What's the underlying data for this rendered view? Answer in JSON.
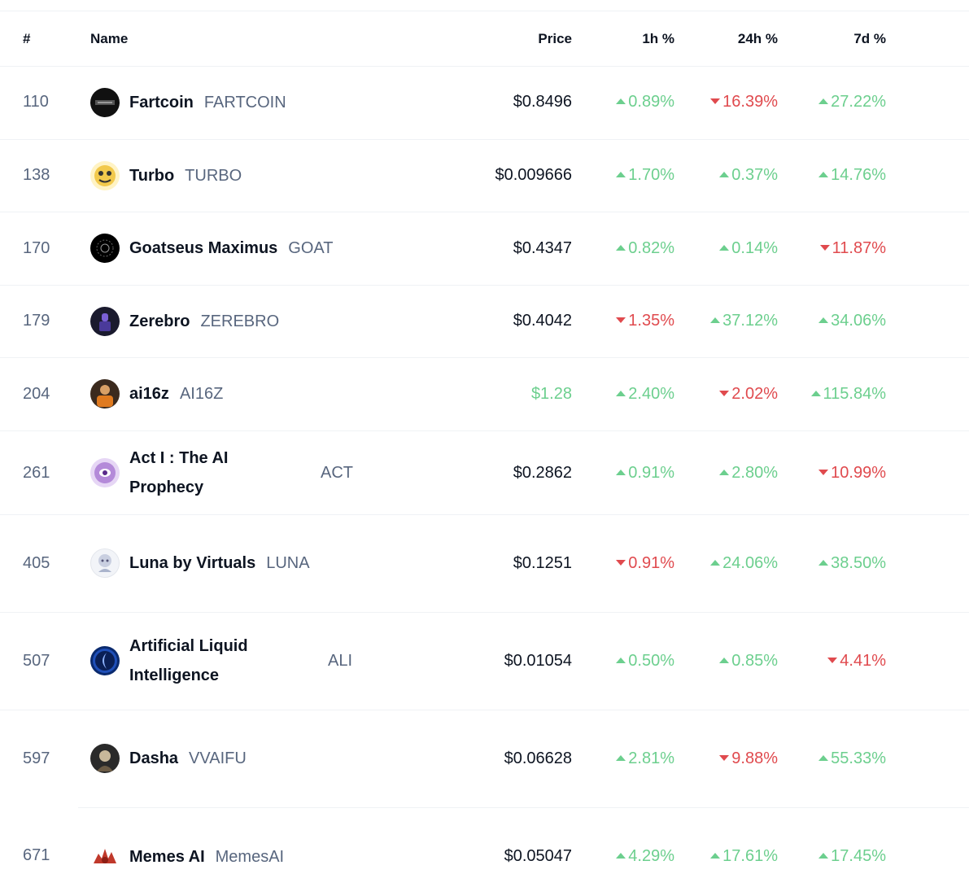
{
  "header": {
    "rank": "#",
    "name": "Name",
    "price": "Price",
    "h1": "1h %",
    "h24": "24h %",
    "d7": "7d %"
  },
  "rows": [
    {
      "rank": "110",
      "name": "Fartcoin",
      "symbol": "FARTCOIN",
      "price": "$0.8496",
      "price_color": "default",
      "h1": "0.89%",
      "h1_dir": "up",
      "h24": "16.39%",
      "h24_dir": "down",
      "d7": "27.22%",
      "d7_dir": "up",
      "logo": "fartcoin-logo-icon"
    },
    {
      "rank": "138",
      "name": "Turbo",
      "symbol": "TURBO",
      "price": "$0.009666",
      "price_color": "default",
      "h1": "1.70%",
      "h1_dir": "up",
      "h24": "0.37%",
      "h24_dir": "up",
      "d7": "14.76%",
      "d7_dir": "up",
      "logo": "turbo-logo-icon"
    },
    {
      "rank": "170",
      "name": "Goatseus Maximus",
      "symbol": "GOAT",
      "price": "$0.4347",
      "price_color": "green",
      "h1": "0.82%",
      "h1_dir": "up",
      "h24": "0.14%",
      "h24_dir": "up",
      "d7": "11.87%",
      "d7_dir": "down",
      "logo": "goat-logo-icon"
    },
    {
      "rank": "179",
      "name": "Zerebro",
      "symbol": "ZEREBRO",
      "price": "$0.4042",
      "price_color": "default",
      "h1": "1.35%",
      "h1_dir": "down",
      "h24": "37.12%",
      "h24_dir": "up",
      "d7": "34.06%",
      "d7_dir": "up",
      "logo": "zerebro-logo-icon"
    },
    {
      "rank": "204",
      "name": "ai16z",
      "symbol": "AI16Z",
      "price": "$1.28",
      "price_color": "green",
      "h1": "2.40%",
      "h1_dir": "up",
      "h24": "2.02%",
      "h24_dir": "down",
      "d7": "115.84%",
      "d7_dir": "up",
      "logo": "ai16z-logo-icon"
    },
    {
      "rank": "261",
      "name": "Act I : The AI Prophecy",
      "symbol": "ACT",
      "price": "$0.2862",
      "price_color": "default",
      "h1": "0.91%",
      "h1_dir": "up",
      "h24": "2.80%",
      "h24_dir": "up",
      "d7": "10.99%",
      "d7_dir": "down",
      "logo": "act-logo-icon"
    },
    {
      "rank": "405",
      "name": "Luna by Virtuals",
      "symbol": "LUNA",
      "price": "$0.1251",
      "price_color": "default",
      "h1": "0.91%",
      "h1_dir": "down",
      "h24": "24.06%",
      "h24_dir": "up",
      "d7": "38.50%",
      "d7_dir": "up",
      "logo": "luna-logo-icon"
    },
    {
      "rank": "507",
      "name": "Artificial Liquid Intelligence",
      "symbol": "ALI",
      "price": "$0.01054",
      "price_color": "default",
      "h1": "0.50%",
      "h1_dir": "up",
      "h24": "0.85%",
      "h24_dir": "up",
      "d7": "4.41%",
      "d7_dir": "down",
      "logo": "ali-logo-icon"
    },
    {
      "rank": "597",
      "name": "Dasha",
      "symbol": "VVAIFU",
      "price": "$0.06628",
      "price_color": "default",
      "h1": "2.81%",
      "h1_dir": "up",
      "h24": "9.88%",
      "h24_dir": "down",
      "d7": "55.33%",
      "d7_dir": "up",
      "logo": "dasha-logo-icon"
    },
    {
      "rank": "671",
      "name": "Memes AI",
      "symbol": "MemesAI",
      "price": "$0.05047",
      "price_color": "default",
      "h1": "4.29%",
      "h1_dir": "up",
      "h24": "17.61%",
      "h24_dir": "up",
      "d7": "17.45%",
      "d7_dir": "up",
      "logo": "memesai-logo-icon"
    }
  ]
}
